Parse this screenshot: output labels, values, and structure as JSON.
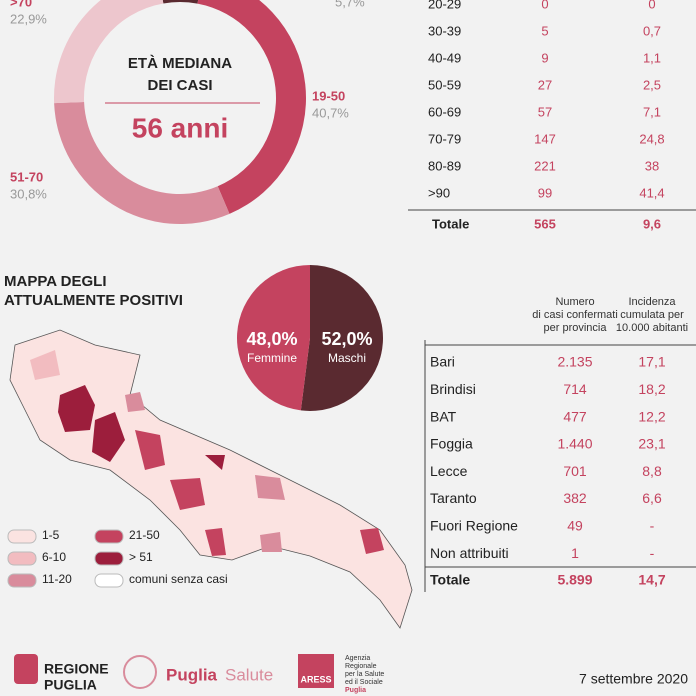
{
  "donut": {
    "title_lines": [
      "ETÀ MEDIANA",
      "DEI CASI"
    ],
    "median": "56 anni",
    "segments": [
      {
        "value": 5.7,
        "value_label": "5,7%",
        "color": "#5a2a30"
      },
      {
        "label": "19-50",
        "value": 40.7,
        "value_label": "40,7%",
        "color": "#c4435f"
      },
      {
        "label": "51-70",
        "value": 30.8,
        "value_label": "30,8%",
        "color": "#d98c9c"
      },
      {
        "label": ">70",
        "value": 22.9,
        "value_label": "22,9%",
        "color": "#edc6cd"
      }
    ]
  },
  "age_table": {
    "rows": [
      [
        "20-29",
        "0",
        "0"
      ],
      [
        "30-39",
        "5",
        "0,7"
      ],
      [
        "40-49",
        "9",
        "1,1"
      ],
      [
        "50-59",
        "27",
        "2,5"
      ],
      [
        "60-69",
        "57",
        "7,1"
      ],
      [
        "70-79",
        "147",
        "24,8"
      ],
      [
        "80-89",
        "221",
        "38"
      ],
      [
        ">90",
        "99",
        "41,4"
      ]
    ],
    "total": [
      "Totale",
      "565",
      "9,6"
    ]
  },
  "map": {
    "title_lines": [
      "MAPPA DEGLI",
      "ATTUALMENTE POSITIVI"
    ],
    "legend": [
      {
        "label": "1-5",
        "color": "#fbe3e1"
      },
      {
        "label": "6-10",
        "color": "#f2bcc0"
      },
      {
        "label": "11-20",
        "color": "#d98c9c"
      },
      {
        "label": "21-50",
        "color": "#c4435f"
      },
      {
        "label": "> 51",
        "color": "#9c1e3c"
      },
      {
        "label": "comuni senza casi",
        "color": "#ffffff"
      }
    ]
  },
  "gender": {
    "segments": [
      {
        "label": "Maschi",
        "value": 52,
        "value_label": "52,0%",
        "color": "#5a2a30"
      },
      {
        "label": "Femmine",
        "value": 48,
        "value_label": "48,0%",
        "color": "#c4435f"
      }
    ]
  },
  "province_table": {
    "headers": [
      [
        "Numero",
        "di casi confermati",
        "per provincia"
      ],
      [
        "Incidenza",
        "cumulata per",
        "10.000 abitanti"
      ]
    ],
    "rows": [
      [
        "Bari",
        "2.135",
        "17,1"
      ],
      [
        "Brindisi",
        "714",
        "18,2"
      ],
      [
        "BAT",
        "477",
        "12,2"
      ],
      [
        "Foggia",
        "1.440",
        "23,1"
      ],
      [
        "Lecce",
        "701",
        "8,8"
      ],
      [
        "Taranto",
        "382",
        "6,6"
      ],
      [
        "Fuori Regione",
        "49",
        "-"
      ],
      [
        "Non attribuiti",
        "1",
        "-"
      ]
    ],
    "total": [
      "Totale",
      "5.899",
      "14,7"
    ]
  },
  "footer": {
    "regione": [
      "REGIONE",
      "PUGLIA"
    ],
    "puglia_salute": [
      "Puglia",
      "Salute"
    ],
    "aress": "ARESS",
    "aress_lines": [
      "Agenzia",
      "Regionale",
      "per la Salute",
      "ed il Sociale",
      "Puglia"
    ],
    "date": "7 settembre 2020"
  }
}
